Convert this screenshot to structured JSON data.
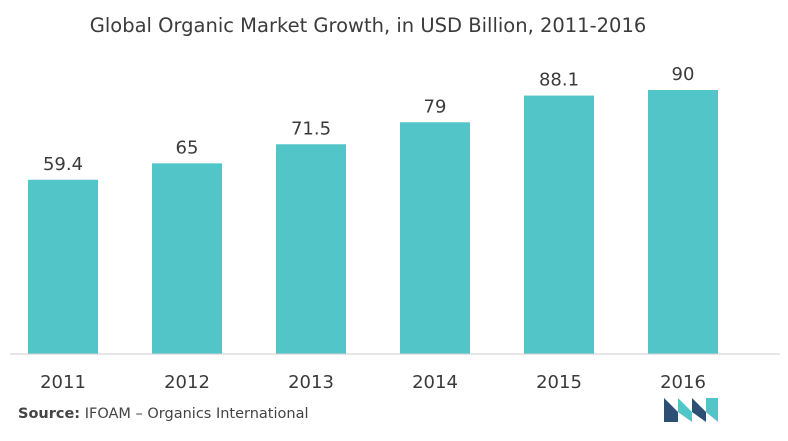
{
  "chart_data": {
    "type": "bar",
    "title": "Global Organic Market Growth, in USD Billion, 2011-2016",
    "categories": [
      "2011",
      "2012",
      "2013",
      "2014",
      "2015",
      "2016"
    ],
    "values": [
      59.4,
      65,
      71.5,
      79,
      88.1,
      90
    ],
    "value_labels": [
      "59.4",
      "65",
      "71.5",
      "79",
      "88.1",
      "90"
    ],
    "xlabel": "",
    "ylabel": "",
    "ylim": [
      0,
      90
    ],
    "grid": false,
    "legend": "none",
    "bar_color": "#52c5c9"
  },
  "source": {
    "label": "Source:",
    "text": "IFOAM – Organics International"
  },
  "logo": {
    "icon": "mordor-logo-icon",
    "colors": [
      "#2d4f73",
      "#52c5c9"
    ]
  }
}
